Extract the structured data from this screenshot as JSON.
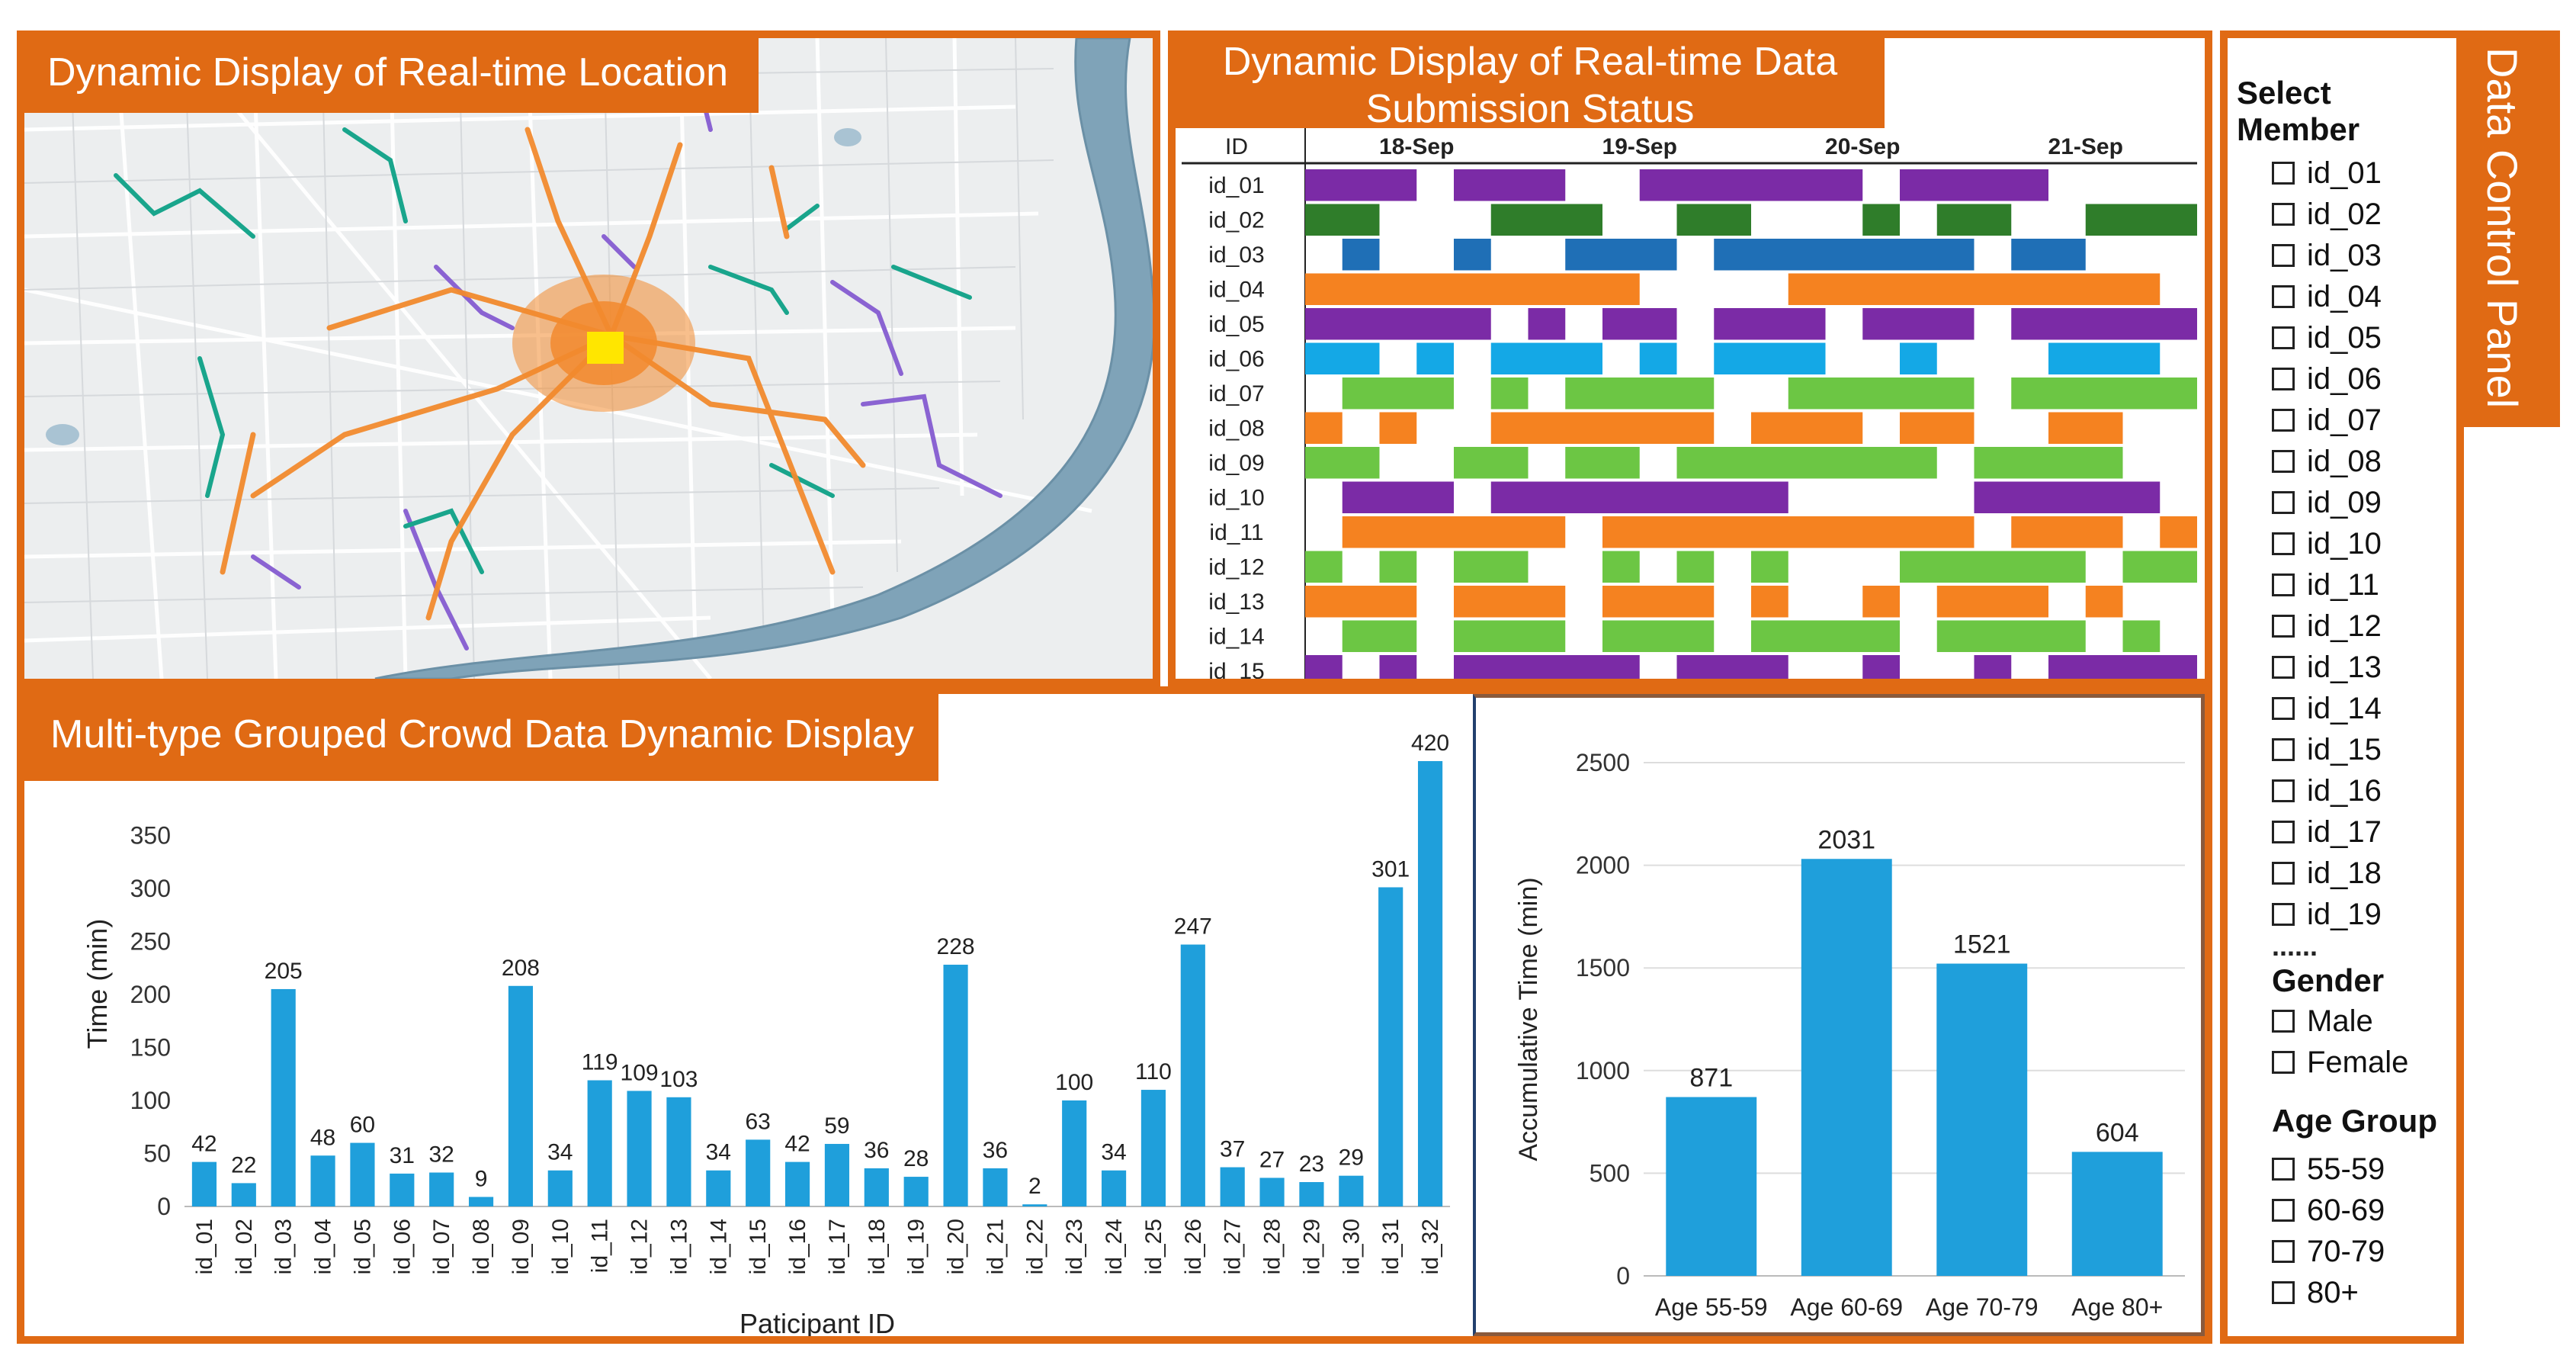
{
  "colors": {
    "accent": "#e06a14",
    "bar": "#1f9fdb",
    "purple": "#7b2ba6",
    "dark_green": "#2f7d2a",
    "blue": "#1f6fb6",
    "orange": "#f58220",
    "sky": "#14a8e6",
    "light_green": "#6cc644"
  },
  "map": {
    "title": "Dynamic Display of  Real-time  Location"
  },
  "submission": {
    "title_line1": "Dynamic Display of  Real-time  Data",
    "title_line2": "Submission Status",
    "id_header": "ID",
    "dates": [
      "18-Sep",
      "19-Sep",
      "20-Sep",
      "21-Sep"
    ],
    "rows": [
      {
        "id": "id_01",
        "color": "purple",
        "spans": [
          [
            0,
            3
          ],
          [
            4,
            7
          ],
          [
            9,
            15
          ],
          [
            16,
            20
          ]
        ]
      },
      {
        "id": "id_02",
        "color": "dark_green",
        "spans": [
          [
            0,
            2
          ],
          [
            5,
            8
          ],
          [
            10,
            12
          ],
          [
            15,
            16
          ],
          [
            17,
            19
          ],
          [
            21,
            24
          ]
        ]
      },
      {
        "id": "id_03",
        "color": "blue",
        "spans": [
          [
            1,
            2
          ],
          [
            4,
            5
          ],
          [
            7,
            10
          ],
          [
            11,
            18
          ],
          [
            19,
            21
          ]
        ]
      },
      {
        "id": "id_04",
        "color": "orange",
        "spans": [
          [
            0,
            9
          ],
          [
            13,
            23
          ]
        ]
      },
      {
        "id": "id_05",
        "color": "purple",
        "spans": [
          [
            0,
            5
          ],
          [
            6,
            7
          ],
          [
            8,
            10
          ],
          [
            11,
            14
          ],
          [
            15,
            18
          ],
          [
            19,
            24
          ]
        ]
      },
      {
        "id": "id_06",
        "color": "sky",
        "spans": [
          [
            0,
            2
          ],
          [
            3,
            4
          ],
          [
            5,
            8
          ],
          [
            9,
            10
          ],
          [
            11,
            14
          ],
          [
            16,
            17
          ],
          [
            20,
            23
          ]
        ]
      },
      {
        "id": "id_07",
        "color": "light_green",
        "spans": [
          [
            1,
            4
          ],
          [
            5,
            6
          ],
          [
            7,
            11
          ],
          [
            13,
            18
          ],
          [
            19,
            24
          ]
        ]
      },
      {
        "id": "id_08",
        "color": "orange",
        "spans": [
          [
            0,
            1
          ],
          [
            2,
            3
          ],
          [
            5,
            11
          ],
          [
            12,
            15
          ],
          [
            16,
            18
          ],
          [
            20,
            22
          ]
        ]
      },
      {
        "id": "id_09",
        "color": "light_green",
        "spans": [
          [
            0,
            2
          ],
          [
            4,
            6
          ],
          [
            7,
            9
          ],
          [
            10,
            17
          ],
          [
            18,
            22
          ]
        ]
      },
      {
        "id": "id_10",
        "color": "purple",
        "spans": [
          [
            1,
            4
          ],
          [
            5,
            13
          ],
          [
            18,
            23
          ]
        ]
      },
      {
        "id": "id_11",
        "color": "orange",
        "spans": [
          [
            1,
            7
          ],
          [
            8,
            18
          ],
          [
            19,
            22
          ],
          [
            23,
            24
          ]
        ]
      },
      {
        "id": "id_12",
        "color": "light_green",
        "spans": [
          [
            0,
            1
          ],
          [
            2,
            3
          ],
          [
            4,
            6
          ],
          [
            8,
            9
          ],
          [
            10,
            11
          ],
          [
            12,
            13
          ],
          [
            16,
            21
          ],
          [
            22,
            24
          ]
        ]
      },
      {
        "id": "id_13",
        "color": "orange",
        "spans": [
          [
            0,
            3
          ],
          [
            4,
            7
          ],
          [
            8,
            11
          ],
          [
            12,
            13
          ],
          [
            15,
            16
          ],
          [
            17,
            20
          ],
          [
            21,
            22
          ]
        ]
      },
      {
        "id": "id_14",
        "color": "light_green",
        "spans": [
          [
            1,
            3
          ],
          [
            4,
            7
          ],
          [
            8,
            11
          ],
          [
            12,
            16
          ],
          [
            17,
            21
          ],
          [
            22,
            23
          ]
        ]
      },
      {
        "id": "id_15",
        "color": "purple",
        "spans": [
          [
            0,
            1
          ],
          [
            2,
            3
          ],
          [
            4,
            9
          ],
          [
            10,
            13
          ],
          [
            15,
            16
          ],
          [
            18,
            19
          ],
          [
            20,
            24
          ]
        ]
      }
    ]
  },
  "grouped": {
    "title": "Multi-type Grouped Crowd Data Dynamic Display"
  },
  "chart_data": [
    {
      "type": "bar",
      "title": "",
      "xlabel": "Paticipant ID",
      "ylabel": "Time (min)",
      "ylim": [
        0,
        420
      ],
      "yticks": [
        0,
        50,
        100,
        150,
        200,
        250,
        300,
        350
      ],
      "categories": [
        "id_01",
        "id_02",
        "id_03",
        "id_04",
        "id_05",
        "id_06",
        "id_07",
        "id_08",
        "id_09",
        "id_10",
        "id_11",
        "id_12",
        "id_13",
        "id_14",
        "id_15",
        "id_16",
        "id_17",
        "id_18",
        "id_19",
        "id_20",
        "id_21",
        "id_22",
        "id_23",
        "id_24",
        "id_25",
        "id_26",
        "id_27",
        "id_28",
        "id_29",
        "id_30",
        "id_31",
        "id_32"
      ],
      "values": [
        42,
        22,
        205,
        48,
        60,
        31,
        32,
        9,
        208,
        34,
        119,
        109,
        103,
        34,
        63,
        42,
        59,
        36,
        28,
        228,
        36,
        2,
        100,
        34,
        110,
        247,
        37,
        27,
        23,
        29,
        301,
        420
      ]
    },
    {
      "type": "bar",
      "title": "",
      "xlabel": "",
      "ylabel": "Accumulative Time (min)",
      "ylim": [
        0,
        2500
      ],
      "yticks": [
        0,
        500,
        1000,
        1500,
        2000,
        2500
      ],
      "categories": [
        "Age 55-59",
        "Age 60-69",
        "Age 70-79",
        "Age 80+"
      ],
      "values": [
        871,
        2031,
        1521,
        604
      ]
    }
  ],
  "control_panel": {
    "title": "Data Control Panel",
    "select_member_label": "Select Member",
    "members": [
      "id_01",
      "id_02",
      "id_03",
      "id_04",
      "id_05",
      "id_06",
      "id_07",
      "id_08",
      "id_09",
      "id_10",
      "id_11",
      "id_12",
      "id_13",
      "id_14",
      "id_15",
      "id_16",
      "id_17",
      "id_18",
      "id_19"
    ],
    "ellipsis": "......",
    "gender_label": "Gender",
    "genders": [
      "Male",
      "Female"
    ],
    "age_group_label": "Age Group",
    "age_groups": [
      "55-59",
      "60-69",
      "70-79",
      "80+"
    ]
  }
}
